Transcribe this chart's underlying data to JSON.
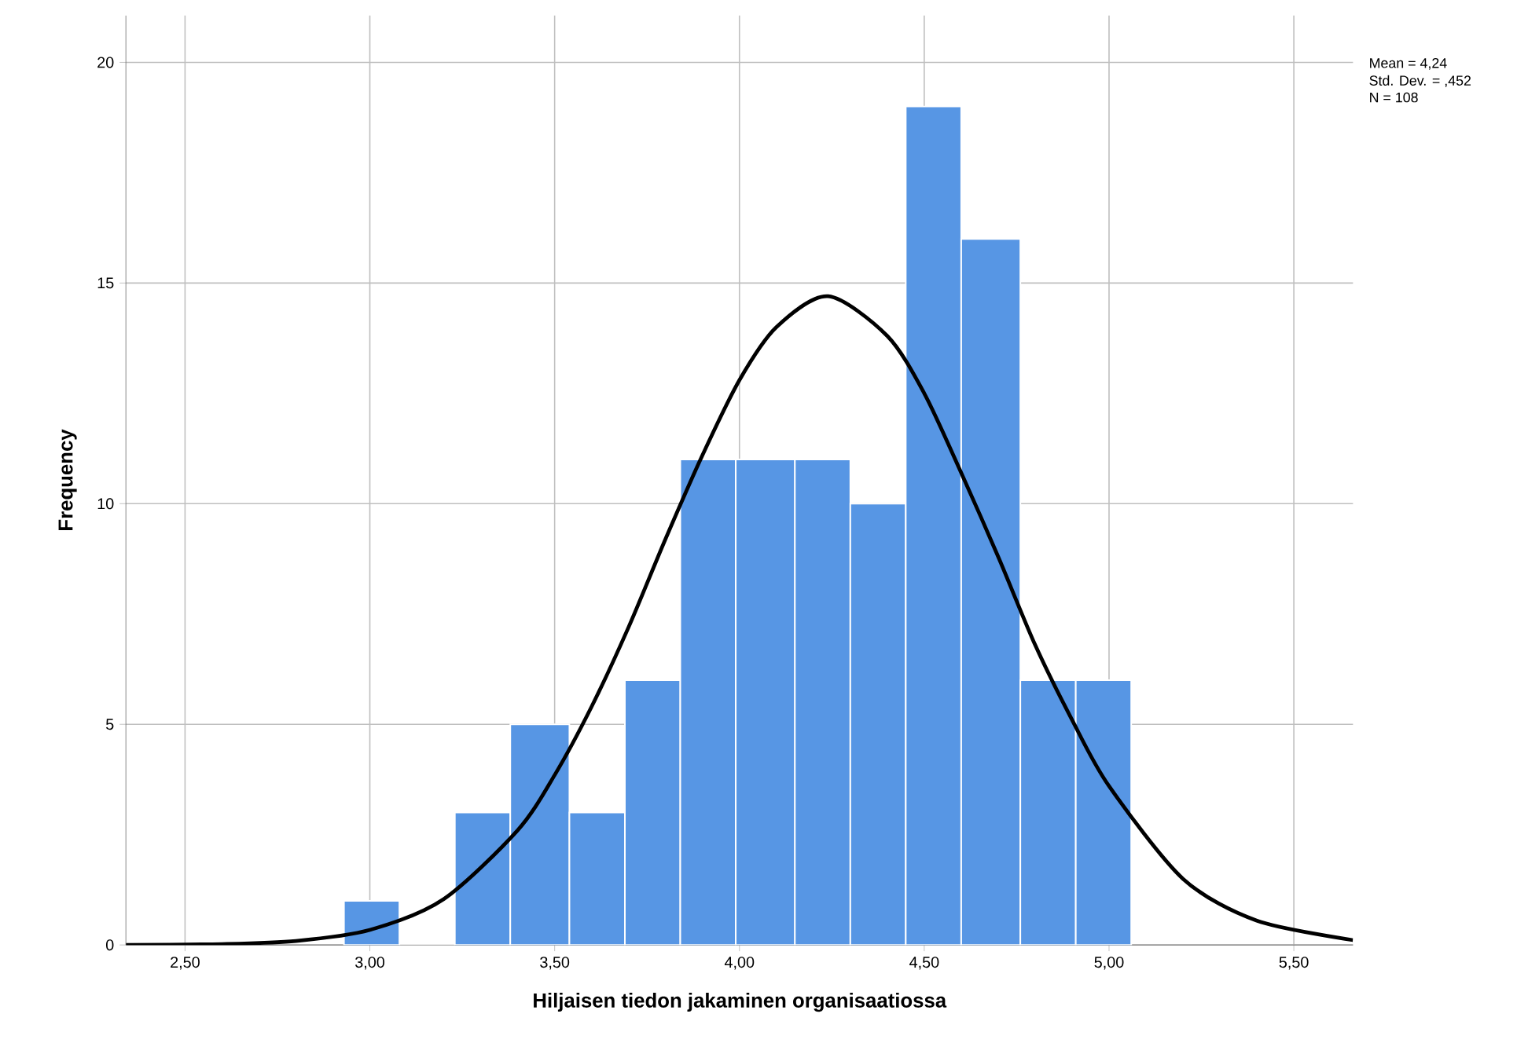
{
  "chart_data": {
    "type": "histogram",
    "xlabel": "Hiljaisen tiedon jakaminen organisaatiossa",
    "ylabel": "Frequency",
    "annotations": [
      "Mean = 4,24",
      "Std. Dev. = ,452",
      "N = 108"
    ],
    "series": [
      {
        "type": "histogram",
        "color": "#5796e4",
        "bins": [
          2.93,
          3.08,
          3.23,
          3.38,
          3.54,
          3.69,
          3.84,
          3.99,
          4.15,
          4.3,
          4.45,
          4.6,
          4.76,
          4.91,
          5.06
        ],
        "values": [
          1,
          0,
          3,
          5,
          3,
          6,
          11,
          11,
          11,
          10,
          19,
          16,
          6,
          6
        ]
      },
      {
        "type": "line",
        "color": "#000000",
        "x": [
          2.34,
          2.6,
          2.8,
          3.0,
          3.2,
          3.4,
          3.5,
          3.6,
          3.7,
          3.8,
          3.9,
          4.0,
          4.1,
          4.24,
          4.4,
          4.5,
          4.6,
          4.7,
          4.8,
          4.9,
          5.0,
          5.2,
          5.4,
          5.66
        ],
        "values": [
          0.0,
          0.02,
          0.09,
          0.34,
          1.04,
          2.6,
          3.85,
          5.4,
          7.2,
          9.2,
          11.1,
          12.8,
          14.0,
          14.7,
          13.8,
          12.5,
          10.7,
          8.8,
          6.8,
          5.1,
          3.6,
          1.5,
          0.55,
          0.11
        ]
      }
    ],
    "xlim": [
      2.34,
      5.66
    ],
    "ylim": [
      0,
      21.06
    ],
    "xticks": [
      {
        "value": 2.5,
        "label": "2,50"
      },
      {
        "value": 3.0,
        "label": "3,00"
      },
      {
        "value": 3.5,
        "label": "3,50"
      },
      {
        "value": 4.0,
        "label": "4,00"
      },
      {
        "value": 4.5,
        "label": "4,50"
      },
      {
        "value": 5.0,
        "label": "5,00"
      },
      {
        "value": 5.5,
        "label": "5,50"
      }
    ],
    "yticks": [
      0,
      5,
      10,
      15,
      20
    ],
    "grid": true
  }
}
